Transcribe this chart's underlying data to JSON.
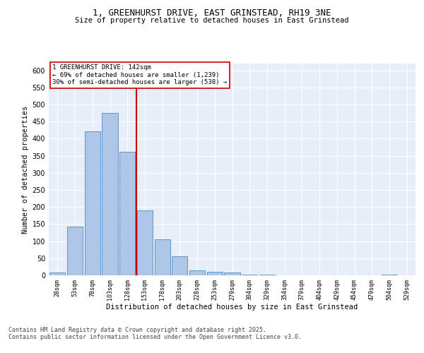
{
  "title_line1": "1, GREENHURST DRIVE, EAST GRINSTEAD, RH19 3NE",
  "title_line2": "Size of property relative to detached houses in East Grinstead",
  "xlabel": "Distribution of detached houses by size in East Grinstead",
  "ylabel": "Number of detached properties",
  "categories": [
    "28sqm",
    "53sqm",
    "78sqm",
    "103sqm",
    "128sqm",
    "153sqm",
    "178sqm",
    "203sqm",
    "228sqm",
    "253sqm",
    "279sqm",
    "304sqm",
    "329sqm",
    "354sqm",
    "379sqm",
    "404sqm",
    "429sqm",
    "454sqm",
    "479sqm",
    "504sqm",
    "529sqm"
  ],
  "bar_values": [
    8,
    143,
    422,
    475,
    362,
    190,
    105,
    55,
    14,
    11,
    8,
    2,
    2,
    1,
    1,
    0,
    0,
    0,
    0,
    3,
    0
  ],
  "bar_color": "#aec6e8",
  "bar_edge_color": "#5a96c8",
  "bg_color": "#e8eef8",
  "grid_color": "#ffffff",
  "vline_x": 4.5,
  "vline_color": "#cc0000",
  "annotation_text": "1 GREENHURST DRIVE: 142sqm\n← 69% of detached houses are smaller (1,239)\n30% of semi-detached houses are larger (538) →",
  "annotation_box_color": "#ffffff",
  "annotation_box_edge": "#cc0000",
  "footer_text": "Contains HM Land Registry data © Crown copyright and database right 2025.\nContains public sector information licensed under the Open Government Licence v3.0.",
  "ylim": [
    0,
    620
  ],
  "yticks": [
    0,
    50,
    100,
    150,
    200,
    250,
    300,
    350,
    400,
    450,
    500,
    550,
    600
  ]
}
